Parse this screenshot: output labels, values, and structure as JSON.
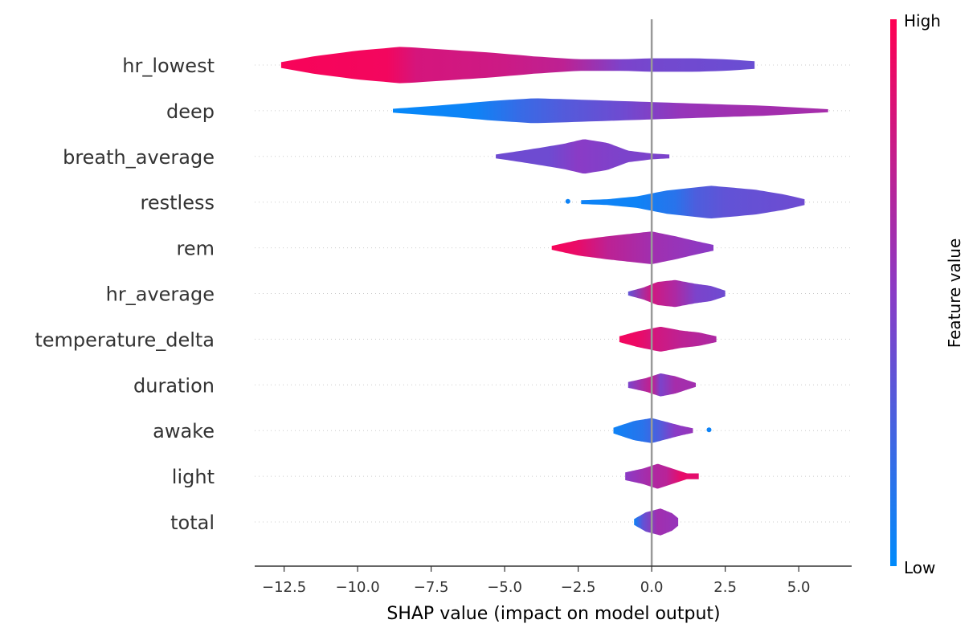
{
  "chart_data": {
    "type": "violin",
    "xlabel": "SHAP value (impact on model output)",
    "xlim": [
      -13.5,
      6.8
    ],
    "xticks": [
      -12.5,
      -10.0,
      -7.5,
      -5.0,
      -2.5,
      0.0,
      2.5,
      5.0
    ],
    "xtick_labels": [
      "−12.5",
      "−10.0",
      "−7.5",
      "−5.0",
      "−2.5",
      "0.0",
      "2.5",
      "5.0"
    ],
    "zero_line": 0,
    "colorbar": {
      "label": "Feature value",
      "high_label": "High",
      "low_label": "Low",
      "low_color": "#008bfb",
      "high_color": "#ff0052"
    },
    "features": [
      {
        "name": "hr_lowest",
        "min": -12.6,
        "max": 3.5,
        "shape": [
          [
            -12.6,
            0.15
          ],
          [
            -11.5,
            0.45
          ],
          [
            -10,
            0.75
          ],
          [
            -8.5,
            0.95
          ],
          [
            -7,
            0.8
          ],
          [
            -5.5,
            0.65
          ],
          [
            -4,
            0.45
          ],
          [
            -2.5,
            0.3
          ],
          [
            -1,
            0.3
          ],
          [
            0,
            0.35
          ],
          [
            1.5,
            0.35
          ],
          [
            2.5,
            0.3
          ],
          [
            3.5,
            0.2
          ]
        ],
        "colors": [
          [
            -12.6,
            0.97
          ],
          [
            -9,
            0.95
          ],
          [
            -8,
            0.82
          ],
          [
            -5,
            0.78
          ],
          [
            -3,
            0.72
          ],
          [
            -1,
            0.45
          ],
          [
            0,
            0.42
          ],
          [
            2,
            0.4
          ],
          [
            3.5,
            0.38
          ]
        ]
      },
      {
        "name": "deep",
        "min": -8.8,
        "max": 6.0,
        "shape": [
          [
            -8.8,
            0.1
          ],
          [
            -7,
            0.3
          ],
          [
            -5.5,
            0.5
          ],
          [
            -4,
            0.65
          ],
          [
            -2,
            0.55
          ],
          [
            0,
            0.45
          ],
          [
            2,
            0.35
          ],
          [
            4,
            0.25
          ],
          [
            6,
            0.08
          ]
        ],
        "colors": [
          [
            -8.8,
            0.02
          ],
          [
            -6,
            0.05
          ],
          [
            -4.5,
            0.2
          ],
          [
            -3,
            0.3
          ],
          [
            -1,
            0.4
          ],
          [
            1,
            0.55
          ],
          [
            3,
            0.6
          ],
          [
            6,
            0.62
          ]
        ]
      },
      {
        "name": "breath_average",
        "min": -5.3,
        "max": 0.6,
        "shape": [
          [
            -5.3,
            0.1
          ],
          [
            -4.2,
            0.35
          ],
          [
            -3,
            0.65
          ],
          [
            -2.3,
            0.9
          ],
          [
            -1.5,
            0.7
          ],
          [
            -0.8,
            0.3
          ],
          [
            0,
            0.15
          ],
          [
            0.6,
            0.1
          ]
        ],
        "colors": [
          [
            -5.3,
            0.4
          ],
          [
            -3.5,
            0.4
          ],
          [
            -2.5,
            0.5
          ],
          [
            -1,
            0.45
          ],
          [
            0.6,
            0.45
          ]
        ]
      },
      {
        "name": "restless",
        "min": -2.4,
        "max": 5.2,
        "outlier": -2.85,
        "outlier_t": 0.05,
        "shape": [
          [
            -2.4,
            0.1
          ],
          [
            -1.5,
            0.15
          ],
          [
            -0.5,
            0.3
          ],
          [
            0.5,
            0.6
          ],
          [
            2,
            0.85
          ],
          [
            3.5,
            0.65
          ],
          [
            4.5,
            0.4
          ],
          [
            5.2,
            0.15
          ]
        ],
        "colors": [
          [
            -2.4,
            0.05
          ],
          [
            -0.5,
            0.05
          ],
          [
            0.8,
            0.15
          ],
          [
            1.5,
            0.28
          ],
          [
            2.5,
            0.35
          ],
          [
            5.2,
            0.4
          ]
        ]
      },
      {
        "name": "rem",
        "min": -3.4,
        "max": 2.1,
        "shape": [
          [
            -3.4,
            0.1
          ],
          [
            -2.5,
            0.4
          ],
          [
            -1.5,
            0.6
          ],
          [
            0,
            0.85
          ],
          [
            0.8,
            0.6
          ],
          [
            1.5,
            0.35
          ],
          [
            2.1,
            0.15
          ]
        ],
        "colors": [
          [
            -3.4,
            0.97
          ],
          [
            -2.5,
            0.9
          ],
          [
            -1.5,
            0.72
          ],
          [
            0,
            0.6
          ],
          [
            1,
            0.55
          ],
          [
            2.1,
            0.5
          ]
        ]
      },
      {
        "name": "hr_average",
        "min": -0.8,
        "max": 2.5,
        "shape": [
          [
            -0.8,
            0.1
          ],
          [
            -0.3,
            0.3
          ],
          [
            0.2,
            0.6
          ],
          [
            0.8,
            0.7
          ],
          [
            1.5,
            0.5
          ],
          [
            2,
            0.4
          ],
          [
            2.5,
            0.15
          ]
        ],
        "colors": [
          [
            -0.8,
            0.35
          ],
          [
            0,
            0.8
          ],
          [
            0.8,
            0.65
          ],
          [
            1.5,
            0.45
          ],
          [
            2.5,
            0.4
          ]
        ]
      },
      {
        "name": "temperature_delta",
        "min": -1.1,
        "max": 2.2,
        "shape": [
          [
            -1.1,
            0.15
          ],
          [
            -0.5,
            0.4
          ],
          [
            0.3,
            0.65
          ],
          [
            1,
            0.45
          ],
          [
            1.6,
            0.35
          ],
          [
            2.2,
            0.15
          ]
        ],
        "colors": [
          [
            -1.1,
            0.95
          ],
          [
            -0.5,
            0.92
          ],
          [
            0.2,
            0.8
          ],
          [
            1,
            0.72
          ],
          [
            2.2,
            0.65
          ]
        ]
      },
      {
        "name": "duration",
        "min": -0.8,
        "max": 1.5,
        "shape": [
          [
            -0.8,
            0.15
          ],
          [
            -0.2,
            0.35
          ],
          [
            0.3,
            0.6
          ],
          [
            0.8,
            0.45
          ],
          [
            1.2,
            0.25
          ],
          [
            1.5,
            0.1
          ]
        ],
        "colors": [
          [
            -0.8,
            0.45
          ],
          [
            0,
            0.75
          ],
          [
            0.3,
            0.45
          ],
          [
            0.8,
            0.62
          ],
          [
            1.5,
            0.6
          ]
        ]
      },
      {
        "name": "awake",
        "min": -1.3,
        "max": 1.4,
        "outlier": 1.95,
        "outlier_t": 0.05,
        "shape": [
          [
            -1.3,
            0.15
          ],
          [
            -0.6,
            0.5
          ],
          [
            0,
            0.65
          ],
          [
            0.5,
            0.45
          ],
          [
            1,
            0.25
          ],
          [
            1.4,
            0.12
          ]
        ],
        "colors": [
          [
            -1.3,
            0.05
          ],
          [
            -0.3,
            0.15
          ],
          [
            0.3,
            0.3
          ],
          [
            0.8,
            0.5
          ],
          [
            1.4,
            0.55
          ]
        ]
      },
      {
        "name": "light",
        "min": -0.9,
        "max": 1.6,
        "shape": [
          [
            -0.9,
            0.2
          ],
          [
            -0.3,
            0.4
          ],
          [
            0.2,
            0.65
          ],
          [
            0.8,
            0.35
          ],
          [
            1.2,
            0.15
          ],
          [
            1.6,
            0.15
          ]
        ],
        "colors": [
          [
            -0.9,
            0.5
          ],
          [
            0,
            0.65
          ],
          [
            0.5,
            0.7
          ],
          [
            1,
            0.9
          ],
          [
            1.6,
            0.88
          ]
        ]
      },
      {
        "name": "total",
        "min": -0.6,
        "max": 0.9,
        "shape": [
          [
            -0.6,
            0.15
          ],
          [
            -0.2,
            0.5
          ],
          [
            0.3,
            0.7
          ],
          [
            0.7,
            0.45
          ],
          [
            0.9,
            0.2
          ]
        ],
        "colors": [
          [
            -0.6,
            0.05
          ],
          [
            -0.3,
            0.35
          ],
          [
            0.2,
            0.6
          ],
          [
            0.9,
            0.55
          ]
        ]
      }
    ]
  }
}
